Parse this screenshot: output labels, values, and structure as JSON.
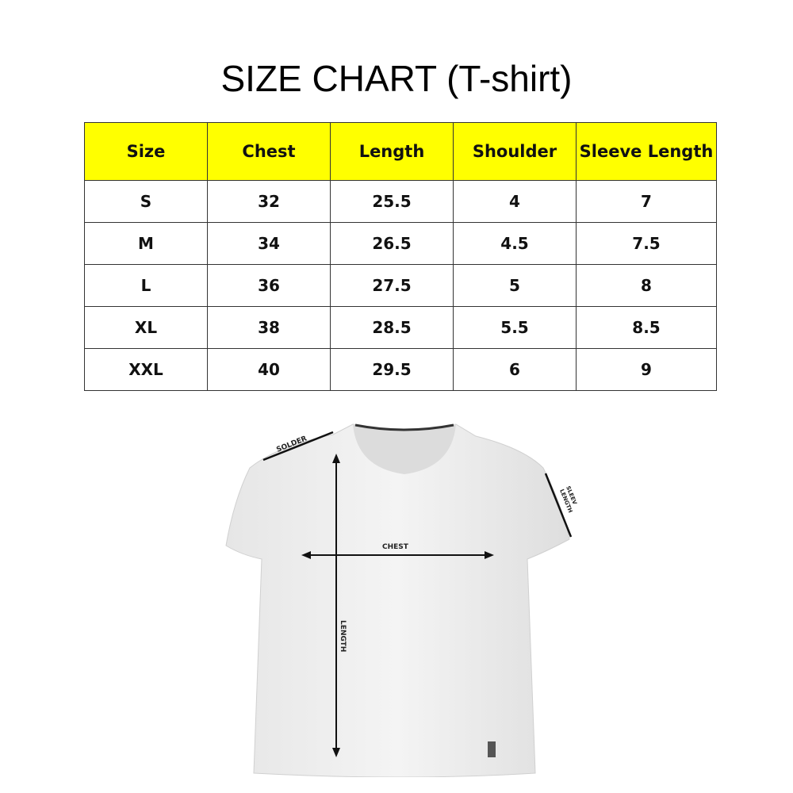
{
  "title": "SIZE CHART (T-shirt)",
  "table": {
    "header_color": "#ffff00",
    "headers": [
      "Size",
      "Chest",
      "Length",
      "Shoulder",
      "Sleeve Length"
    ],
    "rows": [
      [
        "S",
        "32",
        "25.5",
        "4",
        "7"
      ],
      [
        "M",
        "34",
        "26.5",
        "4.5",
        "7.5"
      ],
      [
        "L",
        "36",
        "27.5",
        "5",
        "8"
      ],
      [
        "XL",
        "38",
        "28.5",
        "5.5",
        "8.5"
      ],
      [
        "XXL",
        "40",
        "29.5",
        "6",
        "9"
      ]
    ]
  },
  "diagram": {
    "labels": {
      "shoulder": "SOLDER",
      "chest": "CHEST",
      "length": "LENGTH",
      "sleeve_1": "SLEEV",
      "sleeve_2": "LENGTH"
    }
  }
}
